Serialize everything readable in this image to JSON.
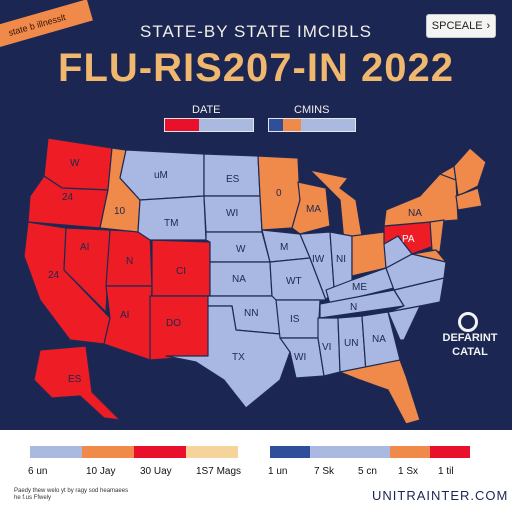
{
  "header": {
    "ribbon_text": "state b illnesslt",
    "subtitle": "STATE-BY STATE IMCIBLS",
    "title": "FLU-RIS207-IN 2022",
    "scale_button": "SPCEALE",
    "scale_chevron": "›"
  },
  "top_legend": {
    "date_label": "DATE",
    "cmins_label": "CMINS",
    "date_colors": [
      "#e8102b",
      "#aab9e0",
      "#aab9e0"
    ],
    "cmins_colors": [
      "#2f4f9a",
      "#f08a4b",
      "#aab9e0",
      "#aab9e0",
      "#aab9e0"
    ]
  },
  "map": {
    "colors": {
      "red": "#ee1c25",
      "orange": "#f08a4b",
      "blue": "#a8b8e2",
      "outline": "#1d2a54"
    },
    "labels": {
      "wa": "W",
      "or": "24",
      "ca": "24",
      "nv": "AI",
      "ut": "N",
      "co": "CI",
      "az": "AI",
      "nm": "DO",
      "ak": "ES",
      "mt": "uM",
      "nd": "ES",
      "id": "10",
      "wy": "TM",
      "sd": "WI",
      "ne": "W",
      "ks": "NA",
      "ok": "NN",
      "tx": "TX",
      "mn": "0",
      "ia": "M",
      "mo": "WT",
      "ar": "IS",
      "la": "WI",
      "ms": "VI",
      "al": "UN",
      "ga": "NA",
      "il": "IW",
      "in": "NI",
      "tn": "N",
      "ky": "ME",
      "oh": "",
      "pa": "PA",
      "ny": "NA",
      "nc": "",
      "wi": "MA"
    },
    "side_label_line1": "DEFARINT",
    "side_label_line2": "CATAL"
  },
  "bottom_legend": {
    "left_colors": [
      "#aab9e0",
      "#f08a4b",
      "#e8102b",
      "#f6d39a"
    ],
    "left_ticks": [
      "6 un",
      "10 Jay",
      "30 Uay",
      "1S7 Mags"
    ],
    "right_colors": [
      "#2f4f9a",
      "#aab9e0",
      "#aab9e0",
      "#f08a4b",
      "#e8102b"
    ],
    "right_ticks": [
      "1 un",
      "7 Sk",
      "5 cn",
      "1 Sx",
      "1 til"
    ]
  },
  "footer": {
    "footnote": "Paedy thew welo yt by ragy sod heamaees he f.us Ffwely",
    "brand": "UNITRAINTER.COM"
  }
}
